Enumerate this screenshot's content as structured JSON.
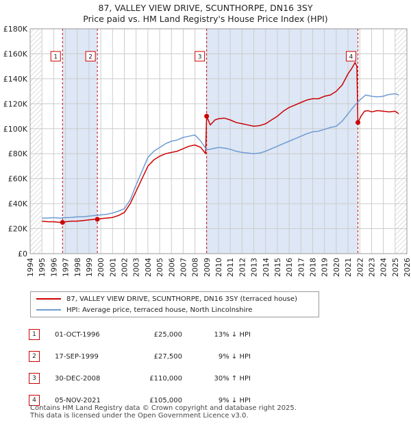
{
  "title": {
    "line1": "87, VALLEY VIEW DRIVE, SCUNTHORPE, DN16 3SY",
    "line2": "Price paid vs. HM Land Registry's House Price Index (HPI)"
  },
  "colors": {
    "price": "#cc0000",
    "hpi": "#6e9bd4",
    "grid": "#cccccc",
    "shade": "#dde7f5"
  },
  "legend": {
    "price_label": "87, VALLEY VIEW DRIVE, SCUNTHORPE, DN16 3SY (terraced house)",
    "hpi_label": "HPI: Average price, terraced house, North Lincolnshire"
  },
  "transactions": [
    {
      "num": "1",
      "date": "01-OCT-1996",
      "price": "£25,000",
      "hpi": "13% ↓ HPI"
    },
    {
      "num": "2",
      "date": "17-SEP-1999",
      "price": "£27,500",
      "hpi": "9% ↓ HPI"
    },
    {
      "num": "3",
      "date": "30-DEC-2008",
      "price": "£110,000",
      "hpi": "30% ↑ HPI"
    },
    {
      "num": "4",
      "date": "05-NOV-2021",
      "price": "£105,000",
      "hpi": "9% ↓ HPI"
    }
  ],
  "footer": {
    "line1": "Contains HM Land Registry data © Crown copyright and database right 2025.",
    "line2": "This data is licensed under the Open Government Licence v3.0."
  },
  "chart_data": {
    "type": "line",
    "title": "87, VALLEY VIEW DRIVE, SCUNTHORPE, DN16 3SY",
    "subtitle": "Price paid vs. HM Land Registry's House Price Index (HPI)",
    "xlabel": "",
    "ylabel": "",
    "xlim": [
      1994,
      2026
    ],
    "ylim": [
      0,
      180000
    ],
    "yticks": [
      0,
      20000,
      40000,
      60000,
      80000,
      100000,
      120000,
      140000,
      160000,
      180000
    ],
    "ytick_labels": [
      "£0",
      "£20K",
      "£40K",
      "£60K",
      "£80K",
      "£100K",
      "£120K",
      "£140K",
      "£160K",
      "£180K"
    ],
    "xticks": [
      1994,
      1995,
      1996,
      1997,
      1998,
      1999,
      2000,
      2001,
      2002,
      2003,
      2004,
      2005,
      2006,
      2007,
      2008,
      2009,
      2010,
      2011,
      2012,
      2013,
      2014,
      2015,
      2016,
      2017,
      2018,
      2019,
      2020,
      2021,
      2022,
      2023,
      2024,
      2025,
      2026
    ],
    "xtick_labels": [
      "1994",
      "1995",
      "1996",
      "1997",
      "1998",
      "1999",
      "2000",
      "2001",
      "2002",
      "2003",
      "2004",
      "2005",
      "2006",
      "2007",
      "2008",
      "2009",
      "2010",
      "2011",
      "2012",
      "2013",
      "2014",
      "2015",
      "2016",
      "2017",
      "2018",
      "2019",
      "2020",
      "2021",
      "2022",
      "2023",
      "2024",
      "2025",
      "2026"
    ],
    "grid": true,
    "shaded_ranges": [
      [
        1994,
        1995
      ],
      [
        2025.0,
        2026
      ]
    ],
    "hatched_ranges": [
      [
        1994,
        1995
      ],
      [
        2025.0,
        2026
      ]
    ],
    "markers": [
      {
        "label": "1",
        "x": 1996.75,
        "y": 25000,
        "box_y": 158000
      },
      {
        "label": "2",
        "x": 1999.71,
        "y": 27500,
        "box_y": 158000
      },
      {
        "label": "3",
        "x": 2008.99,
        "y": 110000,
        "box_y": 158000
      },
      {
        "label": "4",
        "x": 2021.84,
        "y": 105000,
        "box_y": 158000
      }
    ],
    "series": [
      {
        "name": "87, VALLEY VIEW DRIVE, SCUNTHORPE, DN16 3SY (terraced house)",
        "color": "#cc0000",
        "x": [
          1995.0,
          1995.5,
          1996.0,
          1996.5,
          1996.75,
          1997.0,
          1997.5,
          1998.0,
          1998.5,
          1999.0,
          1999.5,
          1999.71,
          2000.0,
          2000.5,
          2001.0,
          2001.5,
          2002.0,
          2002.5,
          2003.0,
          2003.5,
          2004.0,
          2004.5,
          2005.0,
          2005.5,
          2006.0,
          2006.5,
          2007.0,
          2007.5,
          2008.0,
          2008.5,
          2008.9,
          2008.99,
          2009.3,
          2009.7,
          2010.0,
          2010.5,
          2011.0,
          2011.5,
          2012.0,
          2012.5,
          2013.0,
          2013.5,
          2014.0,
          2014.5,
          2015.0,
          2015.5,
          2016.0,
          2016.5,
          2017.0,
          2017.5,
          2018.0,
          2018.5,
          2019.0,
          2019.5,
          2020.0,
          2020.5,
          2021.0,
          2021.3,
          2021.6,
          2021.75,
          2021.84,
          2022.1,
          2022.4,
          2022.7,
          2023.0,
          2023.5,
          2024.0,
          2024.5,
          2025.0,
          2025.3
        ],
        "y": [
          26000,
          25500,
          25500,
          25000,
          25000,
          25500,
          26000,
          26000,
          26500,
          27000,
          27500,
          27500,
          28000,
          28500,
          29000,
          30500,
          33000,
          40000,
          50000,
          60000,
          70000,
          75000,
          78000,
          80000,
          81000,
          82000,
          84000,
          86000,
          87000,
          85000,
          80000,
          110000,
          103000,
          107000,
          108000,
          108500,
          107000,
          105000,
          104000,
          103000,
          102000,
          102500,
          104000,
          107000,
          110000,
          114000,
          117000,
          119000,
          121000,
          123000,
          124000,
          124000,
          126000,
          127000,
          130000,
          135000,
          144000,
          148000,
          153000,
          150000,
          105000,
          110000,
          114000,
          114500,
          113500,
          114500,
          114000,
          113500,
          114000,
          112000
        ]
      },
      {
        "name": "HPI: Average price, terraced house, North Lincolnshire",
        "color": "#6e9bd4",
        "x": [
          1995.0,
          1995.5,
          1996.0,
          1996.5,
          1997.0,
          1997.5,
          1998.0,
          1998.5,
          1999.0,
          1999.5,
          2000.0,
          2000.5,
          2001.0,
          2001.5,
          2002.0,
          2002.5,
          2003.0,
          2003.5,
          2004.0,
          2004.5,
          2005.0,
          2005.5,
          2006.0,
          2006.5,
          2007.0,
          2007.5,
          2008.0,
          2008.5,
          2009.0,
          2009.5,
          2010.0,
          2010.5,
          2011.0,
          2011.5,
          2012.0,
          2012.5,
          2013.0,
          2013.5,
          2014.0,
          2014.5,
          2015.0,
          2015.5,
          2016.0,
          2016.5,
          2017.0,
          2017.5,
          2018.0,
          2018.5,
          2019.0,
          2019.5,
          2020.0,
          2020.5,
          2021.0,
          2021.5,
          2022.0,
          2022.5,
          2023.0,
          2023.5,
          2024.0,
          2024.5,
          2025.0,
          2025.3
        ],
        "y": [
          28500,
          28500,
          28800,
          28500,
          28800,
          29000,
          29500,
          29500,
          30000,
          30500,
          31000,
          31500,
          32500,
          34000,
          36000,
          43000,
          55000,
          66000,
          77000,
          82000,
          85000,
          88000,
          90000,
          91000,
          93000,
          94000,
          95000,
          90000,
          83000,
          84000,
          85000,
          84500,
          83500,
          82000,
          81000,
          80500,
          80000,
          80500,
          82000,
          84000,
          86000,
          88000,
          90000,
          92000,
          94000,
          96000,
          97500,
          98000,
          99500,
          101000,
          102000,
          106000,
          112000,
          118000,
          123000,
          127000,
          126000,
          125500,
          126000,
          127500,
          128000,
          127000
        ]
      }
    ]
  }
}
